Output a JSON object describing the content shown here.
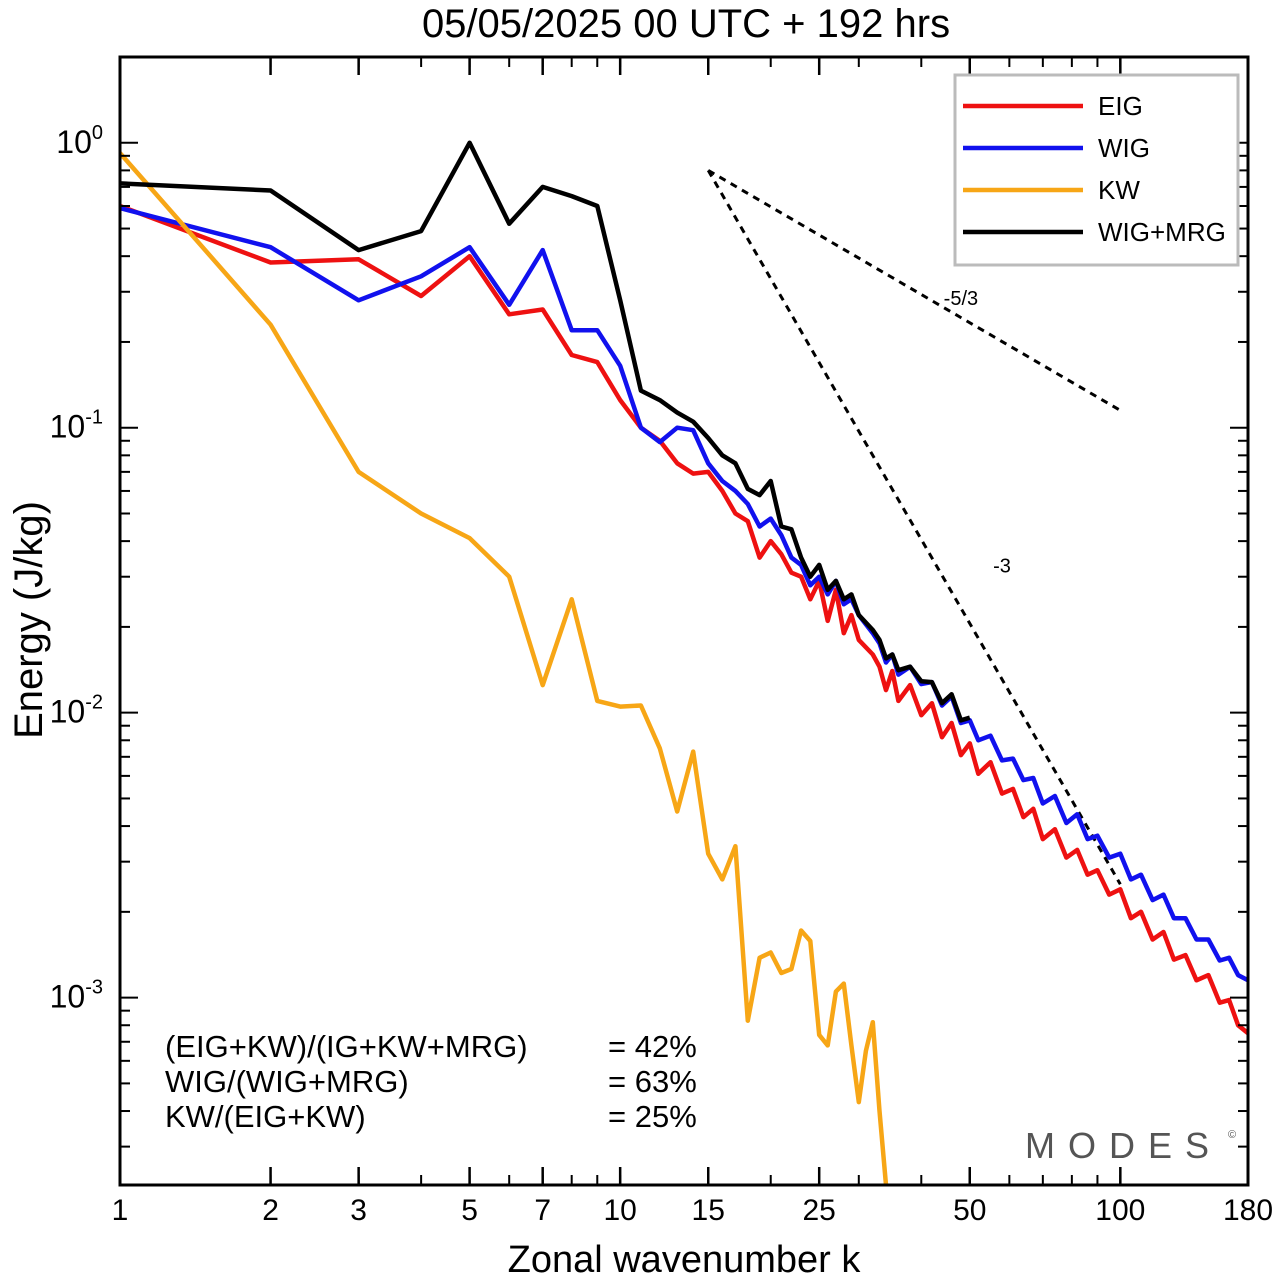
{
  "chart_data": {
    "type": "line",
    "title": "05/05/2025  00 UTC  + 192 hrs",
    "xlabel": "Zonal wavenumber k",
    "ylabel": "Energy (J/kg)",
    "x_scale": "log",
    "y_scale": "log",
    "xlim": [
      1,
      180
    ],
    "ylim": [
      0.00022,
      2.0
    ],
    "x_ticks": [
      1,
      2,
      3,
      5,
      7,
      10,
      15,
      25,
      50,
      100,
      180
    ],
    "y_ticks": [
      {
        "value": 1,
        "mantissa": "10",
        "exp": "0"
      },
      {
        "value": 0.1,
        "mantissa": "10",
        "exp": "-1"
      },
      {
        "value": 0.01,
        "mantissa": "10",
        "exp": "-2"
      },
      {
        "value": 0.001,
        "mantissa": "10",
        "exp": "-3"
      }
    ],
    "grid": false,
    "legend_position": "top-right",
    "series": [
      {
        "name": "EIG",
        "color": "#ee1111",
        "points": [
          [
            1,
            0.6
          ],
          [
            2,
            0.38
          ],
          [
            3,
            0.39
          ],
          [
            4,
            0.29
          ],
          [
            5,
            0.4
          ],
          [
            6,
            0.25
          ],
          [
            7,
            0.26
          ],
          [
            8,
            0.18
          ],
          [
            9,
            0.17
          ],
          [
            10,
            0.125
          ],
          [
            11,
            0.1
          ],
          [
            12,
            0.09
          ],
          [
            13,
            0.075
          ],
          [
            14,
            0.069
          ],
          [
            15,
            0.07
          ],
          [
            16,
            0.06
          ],
          [
            17,
            0.05
          ],
          [
            18,
            0.047
          ],
          [
            19,
            0.035
          ],
          [
            20,
            0.04
          ],
          [
            21,
            0.036
          ],
          [
            22,
            0.031
          ],
          [
            23,
            0.03
          ],
          [
            24,
            0.025
          ],
          [
            25,
            0.029
          ],
          [
            26,
            0.021
          ],
          [
            27,
            0.027
          ],
          [
            28,
            0.019
          ],
          [
            29,
            0.022
          ],
          [
            30,
            0.018
          ],
          [
            32,
            0.016
          ],
          [
            33,
            0.0145
          ],
          [
            34,
            0.012
          ],
          [
            35,
            0.014
          ],
          [
            36,
            0.011
          ],
          [
            38,
            0.0125
          ],
          [
            40,
            0.0098
          ],
          [
            42,
            0.0108
          ],
          [
            44,
            0.0082
          ],
          [
            46,
            0.0092
          ],
          [
            48,
            0.0071
          ],
          [
            50,
            0.0078
          ],
          [
            52,
            0.0061
          ],
          [
            55,
            0.0067
          ],
          [
            58,
            0.0052
          ],
          [
            61,
            0.0054
          ],
          [
            64,
            0.0043
          ],
          [
            67,
            0.0046
          ],
          [
            70,
            0.0036
          ],
          [
            74,
            0.0039
          ],
          [
            78,
            0.0031
          ],
          [
            82,
            0.0033
          ],
          [
            86,
            0.0027
          ],
          [
            90,
            0.0028
          ],
          [
            95,
            0.0023
          ],
          [
            100,
            0.0024
          ],
          [
            105,
            0.0019
          ],
          [
            110,
            0.002
          ],
          [
            116,
            0.0016
          ],
          [
            122,
            0.0017
          ],
          [
            128,
            0.00136
          ],
          [
            135,
            0.00141
          ],
          [
            142,
            0.00115
          ],
          [
            150,
            0.0012
          ],
          [
            158,
            0.00096
          ],
          [
            165,
            0.00098
          ],
          [
            172,
            0.0008
          ],
          [
            180,
            0.00075
          ]
        ]
      },
      {
        "name": "WIG",
        "color": "#1111ee",
        "points": [
          [
            1,
            0.59
          ],
          [
            2,
            0.43
          ],
          [
            3,
            0.28
          ],
          [
            4,
            0.34
          ],
          [
            5,
            0.43
          ],
          [
            6,
            0.27
          ],
          [
            7,
            0.42
          ],
          [
            8,
            0.22
          ],
          [
            9,
            0.22
          ],
          [
            10,
            0.165
          ],
          [
            11,
            0.1
          ],
          [
            12,
            0.089
          ],
          [
            13,
            0.1
          ],
          [
            14,
            0.098
          ],
          [
            15,
            0.075
          ],
          [
            16,
            0.065
          ],
          [
            17,
            0.06
          ],
          [
            18,
            0.054
          ],
          [
            19,
            0.045
          ],
          [
            20,
            0.048
          ],
          [
            21,
            0.042
          ],
          [
            22,
            0.035
          ],
          [
            23,
            0.033
          ],
          [
            24,
            0.028
          ],
          [
            25,
            0.03
          ],
          [
            26,
            0.026
          ],
          [
            27,
            0.029
          ],
          [
            28,
            0.024
          ],
          [
            29,
            0.025
          ],
          [
            30,
            0.022
          ],
          [
            32,
            0.019
          ],
          [
            33,
            0.0175
          ],
          [
            34,
            0.015
          ],
          [
            35,
            0.016
          ],
          [
            36,
            0.0136
          ],
          [
            38,
            0.0145
          ],
          [
            40,
            0.0126
          ],
          [
            42,
            0.0128
          ],
          [
            44,
            0.0106
          ],
          [
            46,
            0.0114
          ],
          [
            48,
            0.0092
          ],
          [
            50,
            0.0094
          ],
          [
            52,
            0.008
          ],
          [
            55,
            0.0083
          ],
          [
            58,
            0.0068
          ],
          [
            61,
            0.0069
          ],
          [
            64,
            0.0058
          ],
          [
            67,
            0.0059
          ],
          [
            70,
            0.0048
          ],
          [
            74,
            0.0051
          ],
          [
            78,
            0.0041
          ],
          [
            82,
            0.0044
          ],
          [
            86,
            0.0036
          ],
          [
            90,
            0.0037
          ],
          [
            95,
            0.0031
          ],
          [
            100,
            0.0032
          ],
          [
            105,
            0.0026
          ],
          [
            110,
            0.0027
          ],
          [
            116,
            0.0022
          ],
          [
            122,
            0.0023
          ],
          [
            128,
            0.0019
          ],
          [
            135,
            0.0019
          ],
          [
            142,
            0.0016
          ],
          [
            150,
            0.0016
          ],
          [
            158,
            0.00135
          ],
          [
            165,
            0.00138
          ],
          [
            172,
            0.0012
          ],
          [
            180,
            0.00115
          ]
        ]
      },
      {
        "name": "KW",
        "color": "#f7a616",
        "points": [
          [
            1,
            0.92
          ],
          [
            2,
            0.23
          ],
          [
            3,
            0.07
          ],
          [
            4,
            0.05
          ],
          [
            5,
            0.041
          ],
          [
            6,
            0.03
          ],
          [
            7,
            0.0125
          ],
          [
            8,
            0.025
          ],
          [
            9,
            0.011
          ],
          [
            10,
            0.0105
          ],
          [
            11,
            0.0106
          ],
          [
            12,
            0.0075
          ],
          [
            13,
            0.0045
          ],
          [
            14,
            0.0073
          ],
          [
            15,
            0.0032
          ],
          [
            16,
            0.0026
          ],
          [
            17,
            0.0034
          ],
          [
            18,
            0.00083
          ],
          [
            19,
            0.00138
          ],
          [
            20,
            0.00144
          ],
          [
            21,
            0.00122
          ],
          [
            22,
            0.00126
          ],
          [
            23,
            0.00172
          ],
          [
            24,
            0.00158
          ],
          [
            25,
            0.00074
          ],
          [
            26,
            0.00068
          ],
          [
            27,
            0.00105
          ],
          [
            28,
            0.00112
          ],
          [
            29,
            0.00068
          ],
          [
            30,
            0.00043
          ],
          [
            31,
            0.00065
          ],
          [
            32,
            0.00082
          ],
          [
            33,
            0.0004
          ],
          [
            34,
            0.00022
          ]
        ]
      },
      {
        "name": "WIG+MRG",
        "color": "#000000",
        "points": [
          [
            1,
            0.72
          ],
          [
            2,
            0.68
          ],
          [
            3,
            0.42
          ],
          [
            4,
            0.49
          ],
          [
            5,
            1.0
          ],
          [
            6,
            0.52
          ],
          [
            7,
            0.7
          ],
          [
            8,
            0.65
          ],
          [
            9,
            0.6
          ],
          [
            10,
            0.28
          ],
          [
            11,
            0.135
          ],
          [
            12,
            0.125
          ],
          [
            13,
            0.113
          ],
          [
            14,
            0.105
          ],
          [
            15,
            0.092
          ],
          [
            16,
            0.08
          ],
          [
            17,
            0.075
          ],
          [
            18,
            0.061
          ],
          [
            19,
            0.058
          ],
          [
            20,
            0.065
          ],
          [
            21,
            0.045
          ],
          [
            22,
            0.044
          ],
          [
            23,
            0.035
          ],
          [
            24,
            0.03
          ],
          [
            25,
            0.033
          ],
          [
            26,
            0.027
          ],
          [
            27,
            0.029
          ],
          [
            28,
            0.025
          ],
          [
            29,
            0.026
          ],
          [
            30,
            0.022
          ],
          [
            32,
            0.0195
          ],
          [
            33,
            0.018
          ],
          [
            34,
            0.0155
          ],
          [
            35,
            0.016
          ],
          [
            36,
            0.0141
          ],
          [
            38,
            0.0145
          ],
          [
            40,
            0.0129
          ],
          [
            42,
            0.0128
          ],
          [
            44,
            0.0108
          ],
          [
            46,
            0.0116
          ],
          [
            48,
            0.0094
          ],
          [
            50,
            0.0096
          ]
        ]
      }
    ],
    "reference_slopes": [
      {
        "label": "-5/3",
        "from": [
          15,
          0.8
        ],
        "to": [
          100,
          0.115
        ],
        "label_at": [
          48,
          0.27
        ]
      },
      {
        "label": "-3",
        "from": [
          15,
          0.8
        ],
        "to": [
          100,
          0.0025
        ],
        "label_at": [
          58,
          0.031
        ]
      }
    ],
    "annotations": [
      {
        "label": "(EIG+KW)/(IG+KW+MRG)",
        "value": "= 42%"
      },
      {
        "label": "WIG/(WIG+MRG)",
        "value": "= 63%"
      },
      {
        "label": "KW/(EIG+KW)",
        "value": "= 25%"
      }
    ],
    "watermark": "MODES",
    "watermark_mark": "©"
  }
}
